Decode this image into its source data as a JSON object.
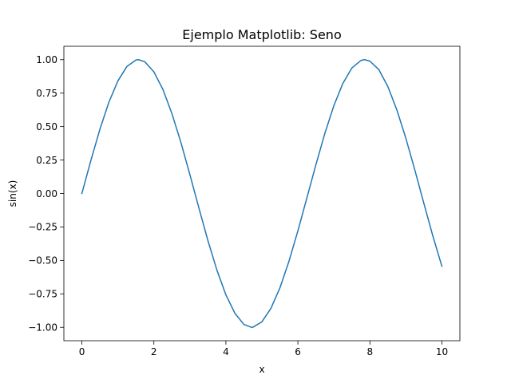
{
  "chart_data": {
    "type": "line",
    "title": "Ejemplo Matplotlib: Seno",
    "xlabel": "x",
    "ylabel": "sin(x)",
    "xlim": [
      -0.5,
      10.5
    ],
    "ylim": [
      -1.1,
      1.1
    ],
    "x_ticks": [
      0,
      2,
      4,
      6,
      8,
      10
    ],
    "x_tick_labels": [
      "0",
      "2",
      "4",
      "6",
      "8",
      "10"
    ],
    "y_ticks": [
      -1.0,
      -0.75,
      -0.5,
      -0.25,
      0.0,
      0.25,
      0.5,
      0.75,
      1.0
    ],
    "y_tick_labels": [
      "−1.00",
      "−0.75",
      "−0.50",
      "−0.25",
      "0.00",
      "0.25",
      "0.50",
      "0.75",
      "1.00"
    ],
    "grid": false,
    "legend": false,
    "series": [
      {
        "color": "#1f77b4",
        "x": [
          0,
          0.25,
          0.5,
          0.75,
          1,
          1.25,
          1.5,
          1.57,
          1.75,
          2,
          2.25,
          2.5,
          2.75,
          3,
          3.25,
          3.5,
          3.75,
          4,
          4.25,
          4.5,
          4.71,
          4.75,
          5,
          5.25,
          5.5,
          5.75,
          6,
          6.25,
          6.5,
          6.75,
          7,
          7.25,
          7.5,
          7.75,
          7.85,
          8,
          8.25,
          8.5,
          8.75,
          9,
          9.25,
          9.5,
          9.75,
          10
        ],
        "y": [
          0,
          0.247,
          0.479,
          0.682,
          0.841,
          0.949,
          0.997,
          1.0,
          0.984,
          0.909,
          0.778,
          0.598,
          0.382,
          0.141,
          -0.108,
          -0.351,
          -0.572,
          -0.757,
          -0.895,
          -0.978,
          -1.0,
          -0.999,
          -0.959,
          -0.859,
          -0.706,
          -0.508,
          -0.279,
          -0.033,
          0.215,
          0.45,
          0.657,
          0.823,
          0.938,
          0.994,
          1.0,
          0.989,
          0.925,
          0.798,
          0.624,
          0.412,
          0.174,
          -0.075,
          -0.319,
          -0.544
        ]
      }
    ]
  }
}
